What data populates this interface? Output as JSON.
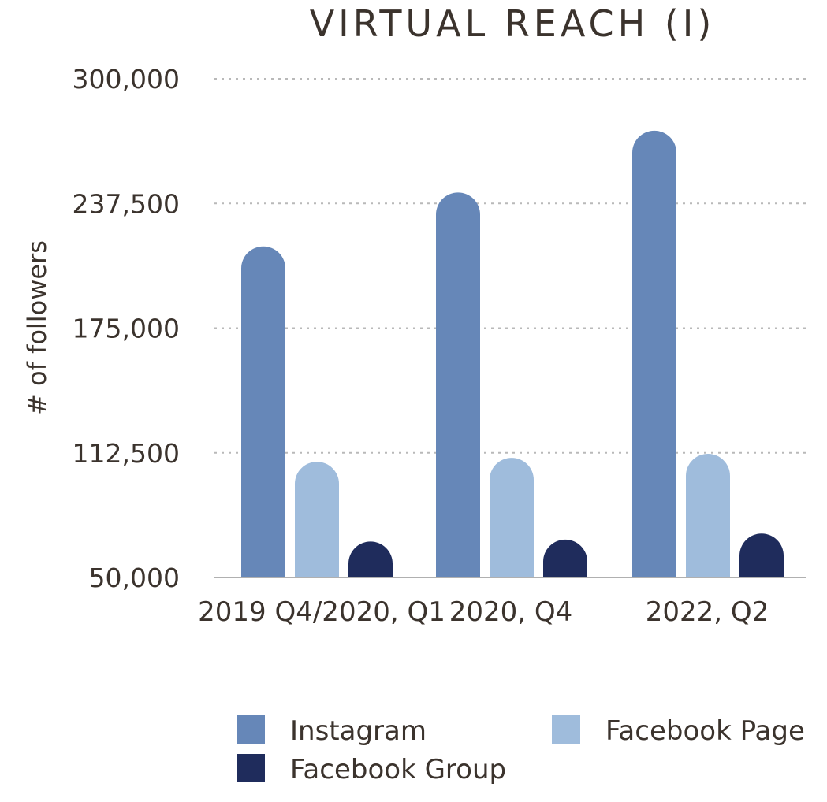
{
  "chart_data": {
    "type": "bar",
    "title": "VIRTUAL REACH (I)",
    "ylabel": "# of followers",
    "xlabel": "",
    "ylim": [
      50000,
      300000
    ],
    "yticks": [
      "300,000",
      "237,500",
      "175,000",
      "112,500",
      "50,000"
    ],
    "ytick_values": [
      300000,
      237500,
      175000,
      112500,
      50000
    ],
    "grid": true,
    "legend_position": "bottom",
    "categories": [
      "2019 Q4/2020, Q1",
      "2020, Q4",
      "2022, Q2"
    ],
    "series": [
      {
        "name": "Instagram",
        "color": "#6687b8",
        "values": [
          216000,
          243000,
          274000
        ]
      },
      {
        "name": "Facebook Page",
        "color": "#9fbcdc",
        "values": [
          108000,
          110000,
          112000
        ]
      },
      {
        "name": "Facebook Group",
        "color": "#1f2c5c",
        "values": [
          68000,
          69000,
          72000
        ]
      }
    ]
  }
}
